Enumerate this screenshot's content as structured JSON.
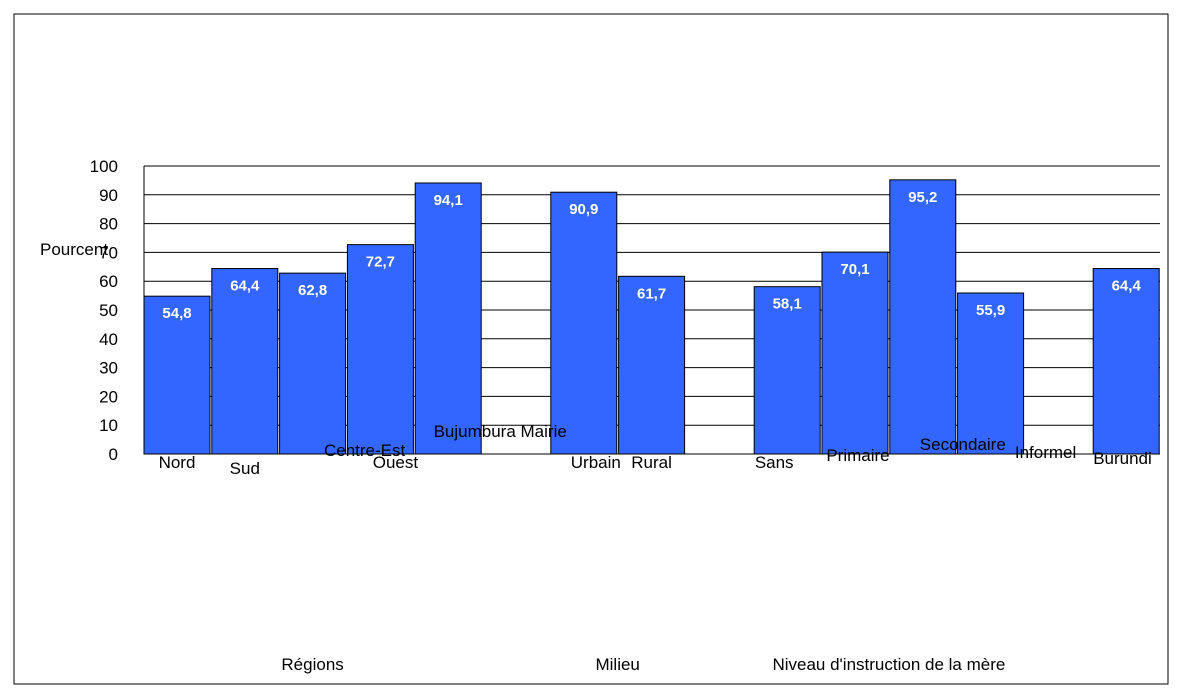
{
  "chart_data": {
    "type": "bar",
    "ylabel": "Pourcent",
    "ylim": [
      0,
      100
    ],
    "yticks": [
      0,
      10,
      20,
      30,
      40,
      50,
      60,
      70,
      80,
      90,
      100
    ],
    "grid": true,
    "legend": "none",
    "bar_color": "#3366ff",
    "categories": [
      "Nord",
      "Sud",
      "Centre-Est",
      "Ouest",
      "Bujumbura Mairie",
      "Urbain",
      "Rural",
      "Sans",
      "Primaire",
      "Secondaire",
      "Informel",
      "Burundi"
    ],
    "values": [
      54.8,
      64.4,
      62.8,
      72.7,
      94.1,
      90.9,
      61.7,
      58.1,
      70.1,
      95.2,
      55.9,
      64.4
    ],
    "value_labels": [
      "54,8",
      "64,4",
      "62,8",
      "72,7",
      "94,1",
      "90,9",
      "61,7",
      "58,1",
      "70,1",
      "95,2",
      "55,9",
      "64,4"
    ],
    "groups": [
      {
        "label": "Régions",
        "categories": [
          "Nord",
          "Sud",
          "Centre-Est",
          "Ouest",
          "Bujumbura Mairie"
        ]
      },
      {
        "label": "Milieu",
        "categories": [
          "Urbain",
          "Rural"
        ]
      },
      {
        "label": "Niveau d'instruction de la mère",
        "categories": [
          "Sans",
          "Primaire",
          "Secondaire",
          "Informel"
        ]
      }
    ]
  }
}
